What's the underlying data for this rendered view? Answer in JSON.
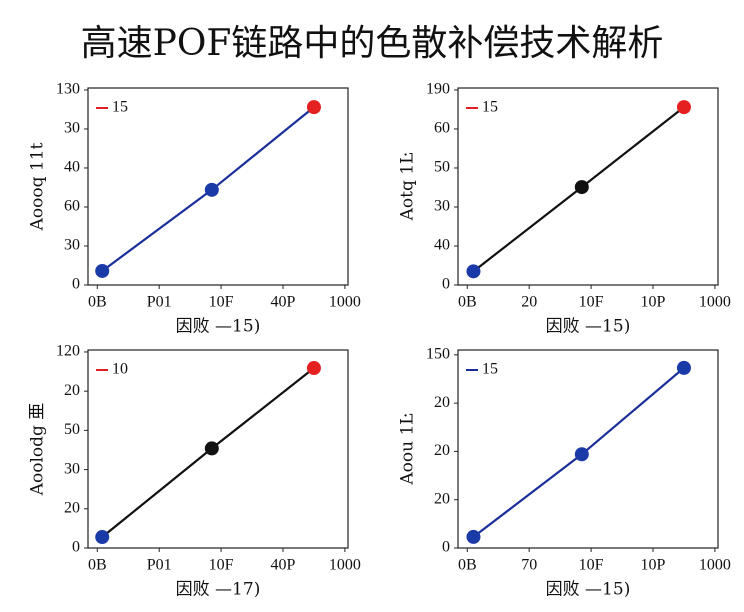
{
  "title": "高速POF链路中的色散补偿技术解析",
  "chart_data": [
    {
      "type": "line",
      "x_label": "因败 —15)",
      "y_label": "Aoooq 11t",
      "xlim": [
        -0.15,
        4.05
      ],
      "ylim": [
        0,
        5.05
      ],
      "xticks": [
        {
          "value": 0,
          "label": "0B"
        },
        {
          "value": 1,
          "label": "P01"
        },
        {
          "value": 2,
          "label": "10F"
        },
        {
          "value": 3,
          "label": "40P"
        },
        {
          "value": 4,
          "label": "1000"
        }
      ],
      "yticks": [
        0,
        {
          "value": 1,
          "label": "30"
        },
        {
          "value": 2,
          "label": "60"
        },
        {
          "value": 3,
          "label": "40"
        },
        {
          "value": 4,
          "label": "30"
        },
        {
          "value": 5,
          "label": "130"
        }
      ],
      "legend_color": "#e02020",
      "series": [
        {
          "name": "15",
          "color": "#1a2f9a",
          "x": [
            0.08,
            1.85,
            3.5
          ],
          "values": [
            0.36,
            2.44,
            4.56
          ],
          "point_colors": [
            "#1a3aa8",
            "#1a3aa8",
            "#e52020"
          ]
        }
      ]
    },
    {
      "type": "line",
      "x_label": "因败 —15)",
      "y_label": "Aotq 1Ŀ",
      "xlim": [
        -0.15,
        4.05
      ],
      "ylim": [
        0,
        5.05
      ],
      "xticks": [
        {
          "value": 0,
          "label": "0B"
        },
        {
          "value": 1,
          "label": "20"
        },
        {
          "value": 2,
          "label": "10F"
        },
        {
          "value": 3,
          "label": "10P"
        },
        {
          "value": 4,
          "label": "1000"
        }
      ],
      "yticks": [
        0,
        {
          "value": 1,
          "label": "40"
        },
        {
          "value": 2,
          "label": "30"
        },
        {
          "value": 3,
          "label": "50"
        },
        {
          "value": 4,
          "label": "60"
        },
        {
          "value": 5,
          "label": "190"
        }
      ],
      "legend_color": "#e02020",
      "series": [
        {
          "name": "15",
          "color": "#111111",
          "x": [
            0.1,
            1.85,
            3.5
          ],
          "values": [
            0.35,
            2.51,
            4.56
          ],
          "point_colors": [
            "#1a3aa8",
            "#111111",
            "#e52020"
          ]
        }
      ]
    },
    {
      "type": "line",
      "x_label": "因败 —17)",
      "y_label": "Aoolodg 亜",
      "xlim": [
        -0.15,
        4.05
      ],
      "ylim": [
        0,
        5.05
      ],
      "xticks": [
        {
          "value": 0,
          "label": "0B"
        },
        {
          "value": 1,
          "label": "P01"
        },
        {
          "value": 2,
          "label": "10F"
        },
        {
          "value": 3,
          "label": "40P"
        },
        {
          "value": 4,
          "label": "1000"
        }
      ],
      "yticks": [
        0,
        {
          "value": 1,
          "label": "20"
        },
        {
          "value": 2,
          "label": "30"
        },
        {
          "value": 3,
          "label": "50"
        },
        {
          "value": 4,
          "label": "20"
        },
        {
          "value": 5,
          "label": "120"
        }
      ],
      "legend_color": "#e02020",
      "series": [
        {
          "name": "10",
          "color": "#111111",
          "x": [
            0.08,
            1.85,
            3.5
          ],
          "values": [
            0.28,
            2.54,
            4.59
          ],
          "point_colors": [
            "#1a3aa8",
            "#111111",
            "#e52020"
          ]
        }
      ]
    },
    {
      "type": "line",
      "x_label": "因败 —15)",
      "y_label": "Aoou 1Ŀ",
      "xlim": [
        -0.15,
        4.05
      ],
      "ylim": [
        0,
        4.1
      ],
      "xticks": [
        {
          "value": 0,
          "label": "0B"
        },
        {
          "value": 1,
          "label": "70"
        },
        {
          "value": 2,
          "label": "10F"
        },
        {
          "value": 3,
          "label": "10P"
        },
        {
          "value": 4,
          "label": "1000"
        }
      ],
      "yticks": [
        0,
        {
          "value": 1,
          "label": "20"
        },
        {
          "value": 2,
          "label": "20"
        },
        {
          "value": 3,
          "label": "20"
        },
        {
          "value": 4,
          "label": "150"
        }
      ],
      "legend_color": "#1a2f9a",
      "series": [
        {
          "name": "15",
          "color": "#1a2f9a",
          "x": [
            0.1,
            1.85,
            3.5
          ],
          "values": [
            0.23,
            1.94,
            3.73
          ],
          "point_colors": [
            "#1a3aa8",
            "#1a3aa8",
            "#1a3aa8"
          ]
        }
      ]
    }
  ]
}
